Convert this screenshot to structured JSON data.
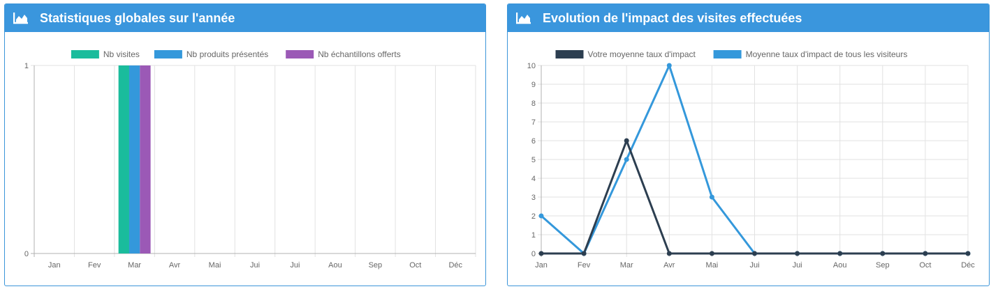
{
  "panels": [
    {
      "title": "Statistiques globales sur l'année"
    },
    {
      "title": "Evolution de l'impact des visites effectuées"
    }
  ],
  "chart_data": [
    {
      "type": "bar",
      "categories": [
        "Jan",
        "Fev",
        "Mar",
        "Avr",
        "Mai",
        "Jui",
        "Jui",
        "Aou",
        "Sep",
        "Oct",
        "Déc"
      ],
      "series": [
        {
          "name": "Nb visites",
          "color": "#1abc9c",
          "values": [
            0,
            0,
            1,
            0,
            0,
            0,
            0,
            0,
            0,
            0,
            0
          ]
        },
        {
          "name": "Nb produits présentés",
          "color": "#3498db",
          "values": [
            0,
            0,
            1,
            0,
            0,
            0,
            0,
            0,
            0,
            0,
            0
          ]
        },
        {
          "name": "Nb échantillons offerts",
          "color": "#9b59b6",
          "values": [
            0,
            0,
            1,
            0,
            0,
            0,
            0,
            0,
            0,
            0,
            0
          ]
        }
      ],
      "ylim": [
        0,
        1
      ],
      "yticks": [
        "0",
        "1"
      ],
      "legend": "top-center",
      "grid": true
    },
    {
      "type": "line",
      "categories": [
        "Jan",
        "Fev",
        "Mar",
        "Avr",
        "Mai",
        "Jui",
        "Jui",
        "Aou",
        "Sep",
        "Oct",
        "Déc"
      ],
      "series": [
        {
          "name": "Votre moyenne taux d'impact",
          "color": "#2c3e50",
          "values": [
            0,
            0,
            6,
            0,
            0,
            0,
            0,
            0,
            0,
            0,
            0
          ]
        },
        {
          "name": "Moyenne taux d'impact de tous les visiteurs",
          "color": "#3498db",
          "values": [
            2,
            0,
            5,
            10,
            3,
            0,
            0,
            0,
            0,
            0,
            0
          ]
        }
      ],
      "ylim": [
        0,
        10
      ],
      "yticks": [
        "0",
        "1",
        "2",
        "3",
        "4",
        "5",
        "6",
        "7",
        "8",
        "9",
        "10"
      ],
      "legend": "top-center",
      "grid": true
    }
  ]
}
